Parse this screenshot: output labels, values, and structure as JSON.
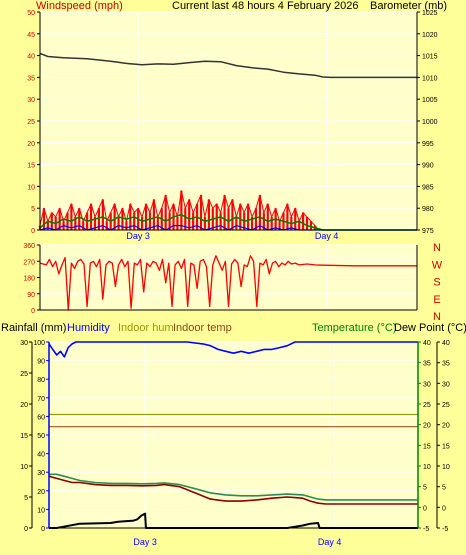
{
  "header": {
    "windspeed_label": "Windspeed (mph)",
    "title": "Current last 48 hours 4 February 2026",
    "barometer_label": "Barometer (mb)"
  },
  "bottom_header": {
    "rainfall_label": "Rainfall (mm)",
    "humidity_label": "Humidity",
    "indoor_hum_label": "Indoor hum",
    "indoor_temp_label": "Indoor temp",
    "temperature_label": "Temperature (°C)",
    "dewpoint_label": "Dew Point (°C)"
  },
  "colors": {
    "background": "#ffff99",
    "wind_gust": "#ff0000",
    "wind_avg": "#008000",
    "wind_low": "#0000ff",
    "barometer": "#333333",
    "direction": "#ff0000",
    "humidity": "#0000ff",
    "temperature": "#2e8b57",
    "dewpoint": "#8b0000",
    "rainfall": "#000000",
    "indoor": "#a0522d",
    "axis_blue": "#0000ff",
    "axis_green": "#008000",
    "label_red": "#cc0000",
    "label_olive": "#999900"
  },
  "chart_data": [
    {
      "id": "wind_barometer",
      "type": "line",
      "y_left": {
        "label": "Windspeed (mph)",
        "range": [
          0,
          50
        ],
        "ticks": [
          0,
          5,
          10,
          15,
          20,
          25,
          30,
          35,
          40,
          45,
          50
        ]
      },
      "y_right": {
        "label": "Barometer (mb)",
        "range": [
          975,
          1025
        ],
        "ticks": [
          975,
          980,
          985,
          990,
          995,
          1000,
          1005,
          1010,
          1015,
          1020,
          1025
        ]
      },
      "x_labels": [
        "Day 3",
        "Day 4"
      ],
      "x_range_hours": [
        0,
        48
      ],
      "x_label_hours": [
        12.5,
        36.5
      ],
      "series": [
        {
          "name": "Barometer (mb)",
          "axis": "right",
          "x": [
            0,
            1,
            3,
            6,
            9,
            11,
            13,
            15,
            17,
            19,
            21,
            23,
            25,
            27,
            29,
            31,
            33,
            35,
            36,
            37,
            40,
            44,
            48
          ],
          "y": [
            1015.5,
            1014.8,
            1014.5,
            1014.3,
            1013.7,
            1013.2,
            1012.9,
            1013.1,
            1013.0,
            1013.4,
            1013.7,
            1013.6,
            1012.7,
            1012.2,
            1011.9,
            1011.2,
            1010.8,
            1010.5,
            1010.1,
            1010.0,
            1010.0,
            1010.0,
            1010.0
          ]
        },
        {
          "name": "Gust",
          "axis": "left",
          "x": [
            0,
            0.5,
            1,
            1.5,
            2,
            2.5,
            3,
            3.5,
            4,
            4.5,
            5,
            5.5,
            6,
            6.5,
            7,
            7.5,
            8,
            8.5,
            9,
            9.5,
            10,
            10.5,
            11,
            11.5,
            12,
            12.5,
            13,
            13.5,
            14,
            14.5,
            15,
            15.5,
            16,
            16.5,
            17,
            17.5,
            18,
            18.5,
            19,
            19.5,
            20,
            20.5,
            21,
            21.5,
            22,
            22.5,
            23,
            23.5,
            24,
            24.5,
            25,
            25.5,
            26,
            26.5,
            27,
            27.5,
            28,
            28.5,
            29,
            29.5,
            30,
            30.5,
            31,
            31.5,
            32,
            32.5,
            33,
            33.5,
            34,
            34.5,
            35,
            35.5,
            36,
            37,
            40,
            44,
            48
          ],
          "y": [
            1,
            5,
            2,
            4,
            3,
            5,
            2,
            4,
            6,
            3,
            5,
            2,
            4,
            6,
            3,
            5,
            7,
            2,
            4,
            6,
            3,
            5,
            2,
            6,
            4,
            5,
            3,
            6,
            4,
            7,
            3,
            5,
            8,
            4,
            6,
            3,
            9,
            5,
            7,
            4,
            6,
            8,
            3,
            7,
            5,
            6,
            4,
            8,
            5,
            7,
            3,
            6,
            4,
            6,
            3,
            5,
            8,
            4,
            6,
            3,
            5,
            2,
            4,
            6,
            3,
            5,
            2,
            4,
            3,
            2,
            1,
            0,
            0,
            0,
            0,
            0,
            0
          ]
        },
        {
          "name": "Average",
          "axis": "left",
          "x": [
            0,
            1,
            2,
            3,
            4,
            5,
            6,
            7,
            8,
            9,
            10,
            11,
            12,
            13,
            14,
            15,
            16,
            17,
            18,
            19,
            20,
            21,
            22,
            23,
            24,
            25,
            26,
            27,
            28,
            29,
            30,
            31,
            32,
            33,
            34,
            35,
            36,
            37,
            40,
            44,
            48
          ],
          "y": [
            0.5,
            2,
            1.5,
            2.5,
            2,
            3,
            2,
            2.5,
            3,
            2,
            3,
            2.5,
            3,
            2,
            2.5,
            3,
            2,
            3,
            3.5,
            2.5,
            3,
            2,
            2.5,
            3,
            2,
            3,
            2,
            2.5,
            3,
            2,
            2.5,
            2,
            1.5,
            2,
            1,
            0.5,
            0,
            0,
            0,
            0,
            0
          ]
        },
        {
          "name": "Low",
          "axis": "left",
          "x": [
            0,
            1,
            2,
            3,
            4,
            5,
            6,
            7,
            8,
            9,
            10,
            11,
            12,
            13,
            14,
            15,
            16,
            17,
            18,
            19,
            20,
            21,
            22,
            23,
            24,
            25,
            26,
            27,
            28,
            29,
            30,
            31,
            32,
            33,
            34,
            35,
            36,
            37,
            40,
            44,
            48
          ],
          "y": [
            0,
            0.5,
            0,
            1,
            0.5,
            1,
            0,
            0.5,
            1,
            0,
            1,
            0.5,
            1,
            0,
            0.5,
            1,
            0,
            1,
            1,
            0.5,
            1,
            0,
            0.5,
            1,
            0,
            1,
            0.5,
            0,
            1,
            0,
            0.5,
            0,
            0.5,
            0,
            0,
            0,
            0,
            0,
            0,
            0,
            0
          ]
        }
      ]
    },
    {
      "id": "wind_direction",
      "type": "line",
      "y_left": {
        "range": [
          0,
          360
        ],
        "ticks": [
          0,
          90,
          180,
          270,
          360
        ]
      },
      "y_right_labels": [
        "N",
        "W",
        "S",
        "E",
        "N"
      ],
      "x_labels": [],
      "x_range_hours": [
        0,
        48
      ],
      "series": [
        {
          "name": "Direction",
          "x": [
            0,
            0.8,
            1.2,
            1.6,
            2,
            2.4,
            2.8,
            3.2,
            3.6,
            4,
            4.4,
            4.8,
            5.2,
            5.6,
            6,
            6.4,
            6.8,
            7.2,
            7.6,
            8,
            8.4,
            8.8,
            9.2,
            9.6,
            10,
            10.4,
            10.8,
            11.2,
            11.6,
            12,
            12.4,
            12.8,
            13.2,
            13.6,
            14,
            14.4,
            14.8,
            15.2,
            15.6,
            16,
            16.4,
            16.8,
            17.2,
            17.6,
            18,
            18.4,
            18.8,
            19.2,
            19.6,
            20,
            20.4,
            20.8,
            21.2,
            21.6,
            22,
            22.4,
            22.8,
            23.2,
            23.6,
            24,
            24.4,
            24.8,
            25.2,
            25.6,
            26,
            26.4,
            26.8,
            27.2,
            27.6,
            28,
            28.4,
            28.8,
            29.2,
            29.6,
            30,
            30.4,
            30.8,
            31.2,
            31.6,
            32,
            32.5,
            33,
            34,
            35,
            36,
            40,
            44,
            48
          ],
          "y": [
            260,
            250,
            280,
            240,
            270,
            200,
            250,
            290,
            0,
            260,
            230,
            270,
            280,
            255,
            20,
            260,
            270,
            240,
            280,
            60,
            250,
            270,
            260,
            130,
            250,
            280,
            240,
            270,
            10,
            260,
            250,
            280,
            100,
            260,
            240,
            270,
            260,
            220,
            280,
            150,
            260,
            20,
            250,
            270,
            230,
            280,
            20,
            260,
            250,
            120,
            270,
            280,
            240,
            20,
            250,
            300,
            260,
            220,
            270,
            20,
            255,
            280,
            260,
            130,
            250,
            240,
            300,
            270,
            20,
            260,
            250,
            280,
            200,
            260,
            270,
            240,
            260,
            250,
            270,
            255,
            260,
            250,
            255,
            250,
            248,
            245,
            245,
            245
          ]
        }
      ]
    },
    {
      "id": "rain_temp",
      "type": "line",
      "y_left_rain": {
        "label": "Rainfall (mm)",
        "range": [
          0,
          30
        ],
        "ticks": [
          0,
          5,
          10,
          15,
          20,
          25,
          30
        ]
      },
      "y_left_humidity": {
        "label": "Humidity",
        "range": [
          0,
          100
        ],
        "ticks": [
          0,
          10,
          20,
          30,
          40,
          50,
          60,
          70,
          80,
          90,
          100
        ]
      },
      "y_right_temp": {
        "label": "Temperature (°C)",
        "range": [
          -5,
          40
        ],
        "ticks": [
          -5,
          0,
          5,
          10,
          15,
          20,
          25,
          30,
          35,
          40
        ]
      },
      "y_right_dew": {
        "label": "Dew Point (°C)",
        "range": [
          -5,
          40
        ],
        "ticks": [
          -5,
          0,
          5,
          10,
          15,
          20,
          25,
          30,
          35,
          40
        ]
      },
      "x_labels": [
        "Day 3",
        "Day 4"
      ],
      "x_range_hours": [
        0,
        48
      ],
      "x_label_hours": [
        12.5,
        36.5
      ],
      "series": [
        {
          "name": "Humidity",
          "axis": "humidity",
          "x": [
            0,
            0.5,
            1,
            1.5,
            2,
            2.5,
            3,
            3.5,
            4,
            6,
            10,
            15,
            18,
            20,
            21,
            22,
            23,
            24,
            25,
            26,
            27,
            28,
            29,
            30,
            31,
            32,
            33,
            34,
            36,
            40,
            44,
            48
          ],
          "y": [
            99,
            96,
            93,
            95,
            92,
            97,
            99,
            100,
            100,
            100,
            100,
            100,
            100,
            99,
            98,
            96,
            95,
            94,
            95,
            94,
            95,
            96,
            96,
            97,
            98,
            100,
            100,
            100,
            100,
            100,
            100,
            100
          ]
        },
        {
          "name": "Indoor hum",
          "axis": "humidity",
          "x": [
            0,
            48
          ],
          "y": [
            61,
            61
          ]
        },
        {
          "name": "Indoor temp",
          "axis": "temp",
          "x": [
            0,
            48
          ],
          "y": [
            19.5,
            19.5
          ]
        },
        {
          "name": "Temperature",
          "axis": "temp",
          "x": [
            0,
            1,
            2,
            3,
            4,
            6,
            8,
            10,
            12,
            14,
            15,
            17,
            19,
            21,
            23,
            25,
            27,
            29,
            31,
            33,
            34,
            35,
            36,
            38,
            40,
            44,
            48
          ],
          "y": [
            8,
            8,
            7.5,
            7,
            6.5,
            6,
            5.8,
            5.8,
            5.7,
            5.8,
            5.9,
            5.5,
            4.5,
            3.5,
            3,
            2.8,
            2.8,
            3,
            3.2,
            3,
            2.5,
            2,
            1.8,
            1.8,
            1.8,
            1.8,
            1.8
          ]
        },
        {
          "name": "Dew Point",
          "axis": "temp",
          "x": [
            0,
            1,
            2,
            3,
            4,
            6,
            8,
            10,
            12,
            14,
            15,
            17,
            19,
            21,
            23,
            25,
            27,
            29,
            31,
            33,
            34,
            35,
            36,
            38,
            40,
            44,
            48
          ],
          "y": [
            7.5,
            7,
            6.5,
            6,
            6,
            5.5,
            5.3,
            5.3,
            5.2,
            5.3,
            5.5,
            5,
            3.5,
            2,
            1.5,
            1.5,
            1.8,
            2.2,
            2.5,
            2.2,
            1.5,
            1,
            0.8,
            0.8,
            0.8,
            0.8,
            0.8
          ]
        },
        {
          "name": "Rainfall",
          "axis": "rain",
          "x": [
            0,
            1,
            4,
            8,
            9,
            11,
            11.5,
            12,
            12.5,
            12.6,
            12.7,
            24,
            31,
            33,
            34,
            35,
            35.2,
            36,
            48
          ],
          "y": [
            0,
            0,
            0.7,
            0.8,
            1,
            1.2,
            1.4,
            2,
            2.3,
            0,
            0,
            0,
            0,
            0.4,
            0.7,
            0.8,
            0,
            0,
            0
          ]
        }
      ]
    }
  ]
}
